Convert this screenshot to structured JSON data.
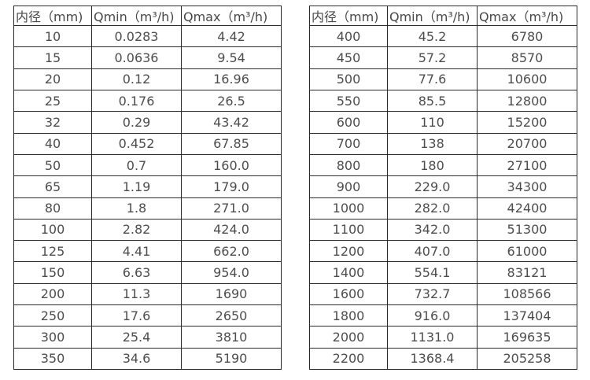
{
  "page": {
    "background_color": "#ffffff",
    "border_color": "#2b2b2b",
    "text_color": "#4d4d4d"
  },
  "tables": [
    {
      "id": "small-diameters",
      "headers": [
        "内径（mm)",
        "Qmin（m³/h)",
        "Qmax（m³/h)"
      ],
      "rows": [
        [
          "10",
          "0.0283",
          "4.42"
        ],
        [
          "15",
          "0.0636",
          "9.54"
        ],
        [
          "20",
          "0.12",
          "16.96"
        ],
        [
          "25",
          "0.176",
          "26.5"
        ],
        [
          "32",
          "0.29",
          "43.42"
        ],
        [
          "40",
          "0.452",
          "67.85"
        ],
        [
          "50",
          "0.7",
          "160.0"
        ],
        [
          "65",
          "1.19",
          "179.0"
        ],
        [
          "80",
          "1.8",
          "271.0"
        ],
        [
          "100",
          "2.82",
          "424.0"
        ],
        [
          "125",
          "4.41",
          "662.0"
        ],
        [
          "150",
          "6.63",
          "954.0"
        ],
        [
          "200",
          "11.3",
          "1690"
        ],
        [
          "250",
          "17.6",
          "2650"
        ],
        [
          "300",
          "25.4",
          "3810"
        ],
        [
          "350",
          "34.6",
          "5190"
        ]
      ]
    },
    {
      "id": "large-diameters",
      "headers": [
        "内径（mm)",
        "Qmin（m³/h)",
        "Qmax（m³/h)"
      ],
      "rows": [
        [
          "400",
          "45.2",
          "6780"
        ],
        [
          "450",
          "57.2",
          "8570"
        ],
        [
          "500",
          "77.6",
          "10600"
        ],
        [
          "550",
          "85.5",
          "12800"
        ],
        [
          "600",
          "110",
          "15200"
        ],
        [
          "700",
          "138",
          "20700"
        ],
        [
          "800",
          "180",
          "27100"
        ],
        [
          "900",
          "229.0",
          "34300"
        ],
        [
          "1000",
          "282.0",
          "42400"
        ],
        [
          "1100",
          "342.0",
          "51300"
        ],
        [
          "1200",
          "407.0",
          "61000"
        ],
        [
          "1400",
          "554.1",
          "83121"
        ],
        [
          "1600",
          "732.7",
          "108566"
        ],
        [
          "1800",
          "916.0",
          "137404"
        ],
        [
          "2000",
          "1131.0",
          "169635"
        ],
        [
          "2200",
          "1368.4",
          "205258"
        ]
      ]
    }
  ]
}
